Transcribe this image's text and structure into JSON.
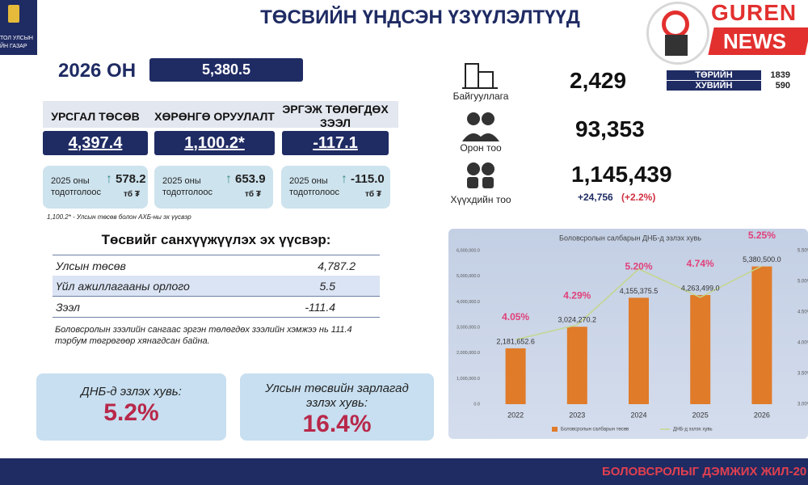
{
  "header": {
    "title": "ТӨСВИЙН ҮНДСЭН ҮЗҮҮЛЭЛТҮҮД",
    "logo_lines": [
      "ТОЛ УЛСЫН",
      "ЙН ГАЗАР"
    ]
  },
  "watermark": {
    "top": "GUREN",
    "bottom": "NEWS"
  },
  "year": {
    "label": "2026 ОН",
    "value": "5,380.5"
  },
  "cards": [
    {
      "title": "УРСГАЛ ТӨСӨВ",
      "value": "4,397.4",
      "prev_label": "2025 оны тодотголоос",
      "prev_value": "578.2",
      "unit": "тб ₮"
    },
    {
      "title": "ХӨРӨНГӨ ОРУУЛАЛТ",
      "value": "1,100.2*",
      "prev_label": "2025 оны тодотголоос",
      "prev_value": "653.9",
      "unit": "тб ₮"
    },
    {
      "title": "ЭРГЭЖ ТӨЛӨГДӨХ ЗЭЭЛ",
      "value": "-117.1",
      "prev_label": "2025 оны тодотголоос",
      "prev_value": "-115.0",
      "unit": "тб ₮"
    }
  ],
  "footnote": "1,100.2* - Улсын төсөв болон АХБ-ны эх үүсвэр",
  "sources": {
    "title": "Төсвийг санхүүжүүлэх эх үүсвэр:",
    "rows": [
      [
        "Улсын төсөв",
        "4,787.2"
      ],
      [
        "Үйл ажиллагааны орлого",
        "5.5"
      ],
      [
        "Зээл",
        "-111.4"
      ]
    ],
    "note": "Боловсролын зээлийн сангаас эргэн төлөгдөх зээлийн хэмжээ нь 111.4 тэрбум төгрөгөөр хянагдсан байна."
  },
  "gdp_box": {
    "label": "ДНБ-д эзлэх хувь:",
    "value": "5.2%"
  },
  "budget_box": {
    "label": "Улсын төсвийн зарлагад эзлэх хувь:",
    "value": "16.4%"
  },
  "stats": [
    {
      "label": "Байгууллага",
      "value": "2,429"
    },
    {
      "label": "Орон тоо",
      "value": "93,353"
    },
    {
      "label": "Хүүхдийн тоо",
      "value": "1,145,439",
      "change": "+24,756",
      "change_pct": "(+2.2%)"
    }
  ],
  "ownership": [
    {
      "label": "ТӨРИЙН",
      "value": "1839"
    },
    {
      "label": "ХУВИЙН",
      "value": "590"
    }
  ],
  "chart_data": {
    "type": "bar-line",
    "title": "Боловсролын салбарын ДНБ-д эзлэх хувь",
    "categories": [
      "2022",
      "2023",
      "2024",
      "2025",
      "2026"
    ],
    "series": [
      {
        "name": "Боловсролын салбарын төсөв",
        "color": "#e07b2a",
        "values": [
          2181652.6,
          3024270.2,
          4155375.5,
          4263499.0,
          5380500.0
        ],
        "value_labels": [
          "2,181,652.6",
          "3,024,270.2",
          "4,155,375.5",
          "4,263,499.0",
          "5,380,500.0"
        ]
      },
      {
        "name": "ДНБ-д эзлэх хувь",
        "color": "#c3d68a",
        "axis": "y2",
        "values": [
          4.05,
          4.29,
          5.2,
          4.74,
          5.25
        ],
        "value_labels": [
          "4.05%",
          "4.29%",
          "5.20%",
          "4.74%",
          "5.25%"
        ],
        "label_color": "#e0407a"
      }
    ],
    "ylim": [
      0,
      6000000
    ],
    "yticks": [
      {
        "value": 0,
        "label": "0.0"
      },
      {
        "value": 1000000,
        "label": "1,000,000.0"
      },
      {
        "value": 2000000,
        "label": "2,000,000.0"
      },
      {
        "value": 3000000,
        "label": "3,000,000.0"
      },
      {
        "value": 4000000,
        "label": "4,000,000.0"
      },
      {
        "value": 5000000,
        "label": "5,000,000.0"
      },
      {
        "value": 6000000,
        "label": "6,000,000.0"
      }
    ],
    "y2lim": [
      3,
      5.5
    ],
    "y2ticks": [
      {
        "value": 3,
        "label": "3.00%"
      },
      {
        "value": 3.5,
        "label": "3.50%"
      },
      {
        "value": 4,
        "label": "4.00%"
      },
      {
        "value": 4.5,
        "label": "4.50%"
      },
      {
        "value": 5,
        "label": "5.00%"
      },
      {
        "value": 5.5,
        "label": "5.50%"
      }
    ]
  },
  "footer": "БОЛОВСРОЛЫГ ДЭМЖИХ ЖИЛ-20"
}
